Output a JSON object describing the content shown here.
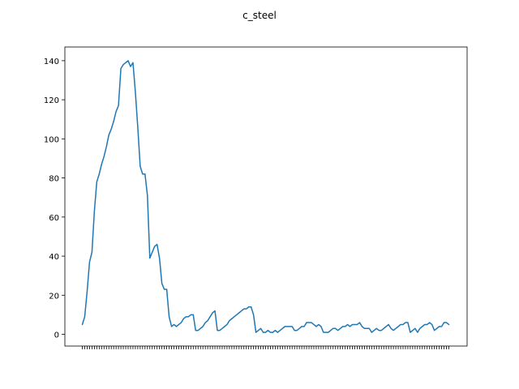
{
  "chart_data": {
    "type": "line",
    "title": "c_steel",
    "xlabel": "",
    "ylabel": "",
    "ylim": [
      -6,
      147
    ],
    "y_ticks": [
      0,
      20,
      40,
      60,
      80,
      100,
      120,
      140
    ],
    "grid": false,
    "color": "#1f77b4",
    "series": [
      {
        "name": "",
        "values": [
          5,
          9,
          22,
          37,
          42,
          63,
          78,
          82,
          87,
          91,
          96,
          102,
          105,
          109,
          114,
          117,
          136,
          138,
          139,
          140,
          137,
          139,
          124,
          106,
          86,
          82,
          82,
          71,
          39,
          42,
          45,
          46,
          39,
          26,
          23,
          23,
          9,
          4,
          5,
          4,
          5,
          6,
          8,
          9,
          9,
          10,
          10,
          2,
          2,
          3,
          4,
          6,
          7,
          9,
          11,
          12,
          2,
          2,
          3,
          4,
          5,
          7,
          8,
          9,
          10,
          11,
          12,
          13,
          13,
          14,
          14,
          10,
          1,
          2,
          3,
          1,
          1,
          2,
          1,
          1,
          2,
          1,
          2,
          3,
          4,
          4,
          4,
          4,
          2,
          2,
          3,
          4,
          4,
          6,
          6,
          6,
          5,
          4,
          5,
          4,
          1,
          1,
          1,
          2,
          3,
          3,
          2,
          3,
          4,
          4,
          5,
          4,
          5,
          5,
          5,
          6,
          4,
          3,
          3,
          3,
          1,
          2,
          3,
          2,
          2,
          3,
          4,
          5,
          3,
          2,
          3,
          4,
          5,
          5,
          6,
          6,
          1,
          2,
          3,
          1,
          3,
          4,
          5,
          5,
          6,
          5,
          2,
          3,
          4,
          4,
          6,
          6,
          5
        ]
      }
    ]
  }
}
